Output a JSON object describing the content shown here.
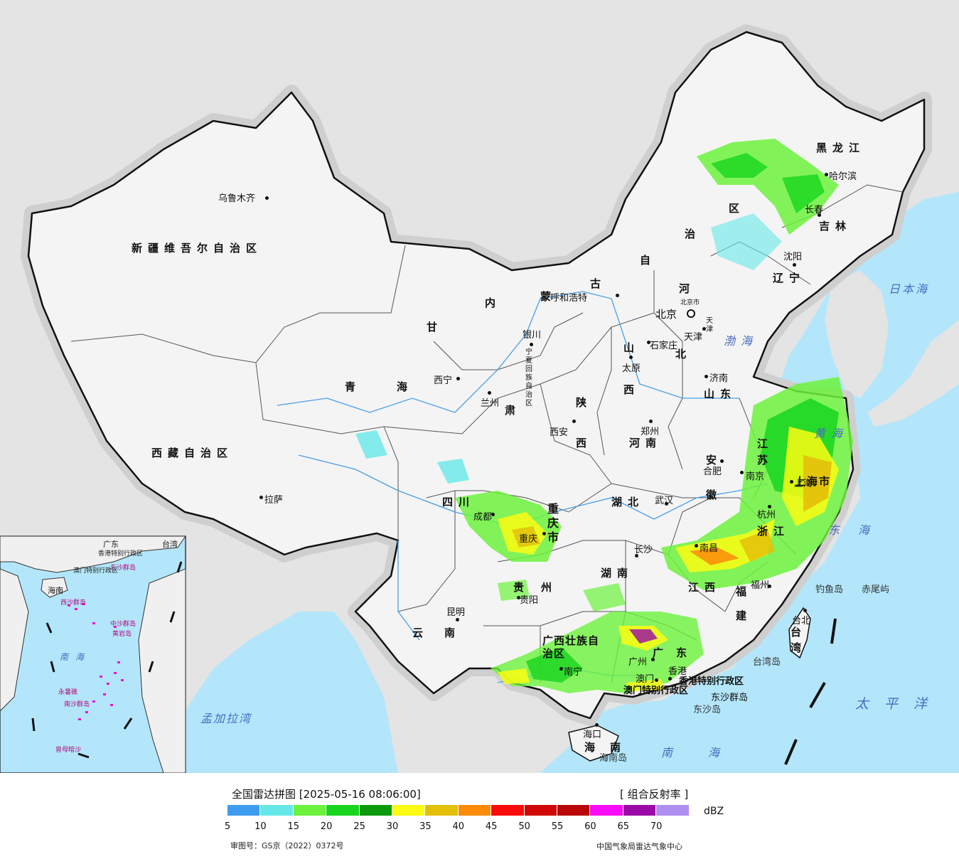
{
  "legend": {
    "title": "全国雷达拼图 [2025-05-16 08:06:00]",
    "product": "[ 组合反射率 ]",
    "unit": "dBZ",
    "scale": [
      {
        "value": "5",
        "color": "#3d9cf0"
      },
      {
        "value": "10",
        "color": "#66e8e8"
      },
      {
        "value": "15",
        "color": "#6cf23c"
      },
      {
        "value": "20",
        "color": "#18d51e"
      },
      {
        "value": "25",
        "color": "#0b9a0b"
      },
      {
        "value": "30",
        "color": "#fbfb13"
      },
      {
        "value": "35",
        "color": "#e3bf0a"
      },
      {
        "value": "40",
        "color": "#fb8b08"
      },
      {
        "value": "45",
        "color": "#fa0b0b"
      },
      {
        "value": "50",
        "color": "#d10808"
      },
      {
        "value": "55",
        "color": "#b90606"
      },
      {
        "value": "60",
        "color": "#f90af8"
      },
      {
        "value": "65",
        "color": "#9a0aa8"
      },
      {
        "value": "70",
        "color": "#ae8ef0"
      }
    ],
    "review_number": "审图号：GS京（2022）0372号",
    "source": "中国气象局雷达气象中心"
  },
  "regions": [
    {
      "id": "xinjiang",
      "label": "新疆维吾尔自治区"
    },
    {
      "id": "xizang",
      "label": "西藏自治区"
    },
    {
      "id": "qinghai-1",
      "label": "青"
    },
    {
      "id": "qinghai-2",
      "label": "海"
    },
    {
      "id": "gansu-1",
      "label": "甘"
    },
    {
      "id": "gansu-2",
      "label": "肃"
    },
    {
      "id": "neimenggu-1",
      "label": "内"
    },
    {
      "id": "neimenggu-2",
      "label": "蒙"
    },
    {
      "id": "neimenggu-3",
      "label": "古"
    },
    {
      "id": "neimenggu-4",
      "label": "自"
    },
    {
      "id": "neimenggu-5",
      "label": "治"
    },
    {
      "id": "neimenggu-6",
      "label": "区"
    },
    {
      "id": "heilongjiang",
      "label": "黑龙江"
    },
    {
      "id": "jilin",
      "label": "吉林"
    },
    {
      "id": "liaoning",
      "label": "辽宁"
    },
    {
      "id": "hebei-1",
      "label": "河"
    },
    {
      "id": "hebei-2",
      "label": "北"
    },
    {
      "id": "shanxi-1",
      "label": "山"
    },
    {
      "id": "shanxi-2",
      "label": "西"
    },
    {
      "id": "shandong",
      "label": "山东"
    },
    {
      "id": "shaanxi-1",
      "label": "陕"
    },
    {
      "id": "shaanxi-2",
      "label": "西"
    },
    {
      "id": "henan",
      "label": "河南"
    },
    {
      "id": "jiangsu-1",
      "label": "江"
    },
    {
      "id": "jiangsu-2",
      "label": "苏"
    },
    {
      "id": "anhui-1",
      "label": "安"
    },
    {
      "id": "anhui-2",
      "label": "徽"
    },
    {
      "id": "hubei",
      "label": "湖北"
    },
    {
      "id": "sichuan",
      "label": "四川"
    },
    {
      "id": "chongqing",
      "label": "重庆市"
    },
    {
      "id": "shanghai",
      "label": "上海市"
    },
    {
      "id": "zhejiang",
      "label": "浙江"
    },
    {
      "id": "hunan",
      "label": "湖南"
    },
    {
      "id": "jiangxi",
      "label": "江西"
    },
    {
      "id": "fujian",
      "label": "福建"
    },
    {
      "id": "guizhou",
      "label": "贵州"
    },
    {
      "id": "yunnan",
      "label": "云南"
    },
    {
      "id": "guangxi",
      "label": "广西壮族自治区"
    },
    {
      "id": "guangdong",
      "label": "广东"
    },
    {
      "id": "hainan-1",
      "label": "海"
    },
    {
      "id": "hainan-2",
      "label": "南"
    },
    {
      "id": "taiwan",
      "label": "台湾"
    },
    {
      "id": "ningxia",
      "label": "宁夏回族自治区"
    },
    {
      "id": "tianjin",
      "label": "天津"
    },
    {
      "id": "beijing-small",
      "label": "北京市"
    }
  ],
  "cities": [
    {
      "id": "urumqi",
      "label": "乌鲁木齐"
    },
    {
      "id": "lhasa",
      "label": "拉萨"
    },
    {
      "id": "xining",
      "label": "西宁"
    },
    {
      "id": "lanzhou",
      "label": "兰州"
    },
    {
      "id": "yinchuan",
      "label": "银川"
    },
    {
      "id": "hohhot",
      "label": "呼和浩特"
    },
    {
      "id": "harbin",
      "label": "哈尔滨"
    },
    {
      "id": "changchun",
      "label": "长春"
    },
    {
      "id": "shenyang",
      "label": "沈阳"
    },
    {
      "id": "beijing",
      "label": "北京"
    },
    {
      "id": "tianjin-city",
      "label": "天津"
    },
    {
      "id": "shijiazhuang",
      "label": "石家庄"
    },
    {
      "id": "taiyuan",
      "label": "太原"
    },
    {
      "id": "jinan",
      "label": "济南"
    },
    {
      "id": "xian",
      "label": "西安"
    },
    {
      "id": "zhengzhou",
      "label": "郑州"
    },
    {
      "id": "hefei",
      "label": "合肥"
    },
    {
      "id": "nanjing",
      "label": "南京"
    },
    {
      "id": "shanghai-city",
      "label": "上海"
    },
    {
      "id": "hangzhou",
      "label": "杭州"
    },
    {
      "id": "wuhan",
      "label": "武汉"
    },
    {
      "id": "chengdu",
      "label": "成都"
    },
    {
      "id": "chongqing-city",
      "label": "重庆"
    },
    {
      "id": "changsha",
      "label": "长沙"
    },
    {
      "id": "nanchang",
      "label": "南昌"
    },
    {
      "id": "fuzhou",
      "label": "福州"
    },
    {
      "id": "guiyang",
      "label": "贵阳"
    },
    {
      "id": "kunming",
      "label": "昆明"
    },
    {
      "id": "nanning",
      "label": "南宁"
    },
    {
      "id": "guangzhou",
      "label": "广州"
    },
    {
      "id": "hongkong",
      "label": "香港"
    },
    {
      "id": "macau",
      "label": "澳门"
    },
    {
      "id": "haikou",
      "label": "海口"
    },
    {
      "id": "taipei",
      "label": "台北"
    }
  ],
  "special": [
    {
      "id": "hk-sar",
      "label": "香港特别行政区"
    },
    {
      "id": "macau-sar",
      "label": "澳门特别行政区"
    },
    {
      "id": "dongsha",
      "label": "东沙群岛"
    },
    {
      "id": "dongsha-2",
      "label": "东沙岛"
    },
    {
      "id": "diaoyu",
      "label": "钓鱼岛"
    },
    {
      "id": "chiwei",
      "label": "赤尾屿"
    },
    {
      "id": "taiwan-island",
      "label": "台湾岛"
    },
    {
      "id": "hainan-island",
      "label": "海南岛"
    }
  ],
  "seas": [
    {
      "id": "bohai",
      "label": "渤海"
    },
    {
      "id": "yellow-sea",
      "label": "黄海"
    },
    {
      "id": "east-sea",
      "label": "东海"
    },
    {
      "id": "south-sea",
      "label": "南海"
    },
    {
      "id": "japan-sea",
      "label": "日本海"
    },
    {
      "id": "pacific",
      "label": "太平洋"
    },
    {
      "id": "bengal",
      "label": "孟加拉湾"
    }
  ],
  "inset": {
    "labels": [
      {
        "id": "inset-south-sea",
        "label": "南海"
      },
      {
        "id": "inset-nansha",
        "label": "南沙群岛"
      },
      {
        "id": "inset-xisha",
        "label": "西沙群岛"
      },
      {
        "id": "inset-zhongsha",
        "label": "中沙群岛"
      },
      {
        "id": "inset-huangyan",
        "label": "黄岩岛"
      },
      {
        "id": "inset-dongsha",
        "label": "东沙群岛"
      },
      {
        "id": "inset-hk",
        "label": "香港特别行政区"
      },
      {
        "id": "inset-macau",
        "label": "澳门特别行政区"
      },
      {
        "id": "inset-hainan",
        "label": "海南"
      },
      {
        "id": "inset-guangdong",
        "label": "广东"
      },
      {
        "id": "inset-taiwan",
        "label": "台湾"
      },
      {
        "id": "inset-zengmu",
        "label": "曾母暗沙"
      },
      {
        "id": "inset-yongshu",
        "label": "永暑礁"
      }
    ]
  }
}
